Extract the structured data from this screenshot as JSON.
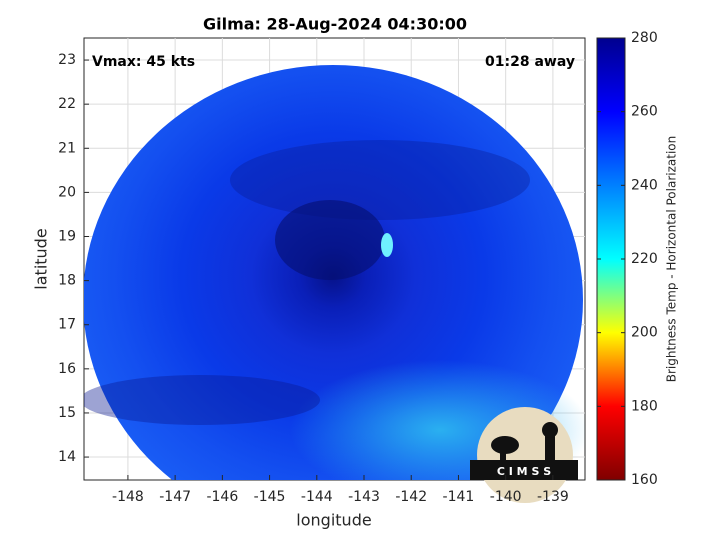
{
  "chart_data": {
    "type": "image",
    "title": "Gilma: 28-Aug-2024 04:30:00",
    "annotations": [
      "Vmax: 45 kts",
      "01:28 away"
    ],
    "xlabel": "longitude",
    "ylabel": "latitude",
    "xlim": [
      -148.93,
      -138.32
    ],
    "xticks": [
      -148,
      -147,
      -146,
      -145,
      -144,
      -143,
      -142,
      -141,
      -140,
      -139
    ],
    "ylim": [
      13.48,
      23.5
    ],
    "yticks": [
      14,
      15,
      16,
      17,
      18,
      19,
      20,
      21,
      22,
      23
    ],
    "grid": true,
    "colorbar": {
      "label": "Brightness Temp - Horizontal Polarization",
      "lim": [
        160,
        280
      ],
      "ticks": [
        160,
        180,
        200,
        220,
        240,
        260,
        280
      ],
      "colormap": [
        "#800000",
        "#ff0000",
        "#ffff00",
        "#00ffff",
        "#0080ff",
        "#0000ff",
        "#00008f"
      ]
    },
    "logo_text": "C I M S S"
  }
}
